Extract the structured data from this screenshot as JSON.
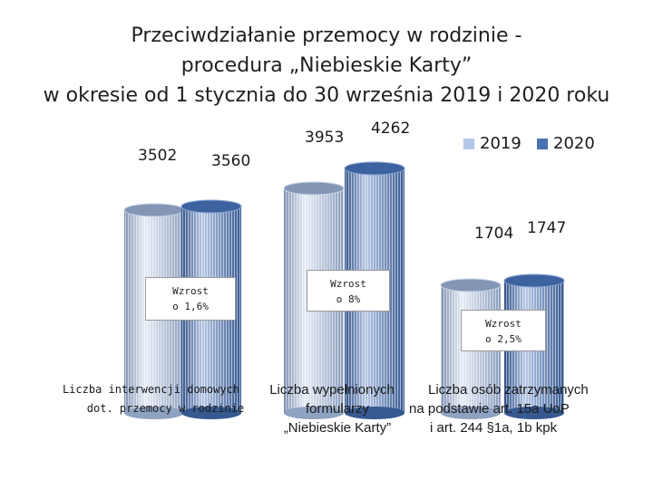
{
  "title": {
    "line1": "Przeciwdziałanie przemocy w rodzinie -",
    "line2": "procedura „Niebieskie Karty”",
    "line3": "w okresie od 1 stycznia do 30 września 2019 i 2020 roku"
  },
  "chart_data": {
    "type": "bar",
    "style": "3d-cylinder",
    "legend_position": "top-right",
    "categories": [
      [
        "Liczba interwencji domowych",
        "dot. przemocy w rodzinie"
      ],
      [
        "Liczba wypełnionych",
        "formularzy",
        "„Niebieskie Karty”"
      ],
      [
        "Liczba osób zatrzymanych",
        "na podstawie art. 15a UoP",
        "i art. 244 §1a, 1b kpk"
      ]
    ],
    "series": [
      {
        "name": "2019",
        "values": [
          3502,
          3953,
          1704
        ],
        "color": "#b4c7e7"
      },
      {
        "name": "2020",
        "values": [
          3560,
          4262,
          1747
        ],
        "color": "#4a72b0"
      }
    ],
    "value_labels": [
      [
        "3502",
        "3560"
      ],
      [
        "3953",
        "4262"
      ],
      [
        "1704",
        "1747"
      ]
    ],
    "annotations": [
      [
        "Wzrost",
        "o 1,6%"
      ],
      [
        "Wzrost",
        "o 8%"
      ],
      [
        "Wzrost",
        "o 2,5%"
      ]
    ]
  }
}
